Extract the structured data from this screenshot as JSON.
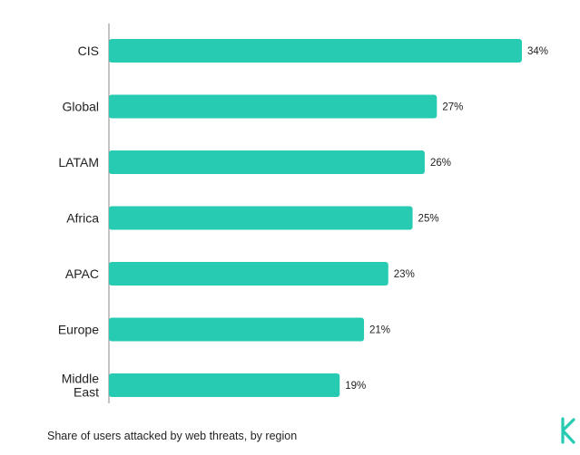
{
  "caption": "Share of users attacked by web threats, by region",
  "colors": {
    "bar": "#26cbb2",
    "axis": "#8a8a8a",
    "text": "#222222",
    "logo": "#26cbb2"
  },
  "logo": {
    "icon": "k-logo-icon"
  },
  "chart_data": {
    "type": "bar",
    "orientation": "horizontal",
    "categories": [
      "CIS",
      "Global",
      "LATAM",
      "Africa",
      "APAC",
      "Europe",
      "Middle East"
    ],
    "values": [
      34,
      27,
      26,
      25,
      23,
      21,
      19
    ],
    "value_labels": [
      "34%",
      "27%",
      "26%",
      "25%",
      "23%",
      "21%",
      "19%"
    ],
    "unit": "%",
    "xlim": [
      0,
      34
    ],
    "grid": false,
    "legend": "none",
    "title": "",
    "xlabel": "",
    "ylabel": ""
  }
}
